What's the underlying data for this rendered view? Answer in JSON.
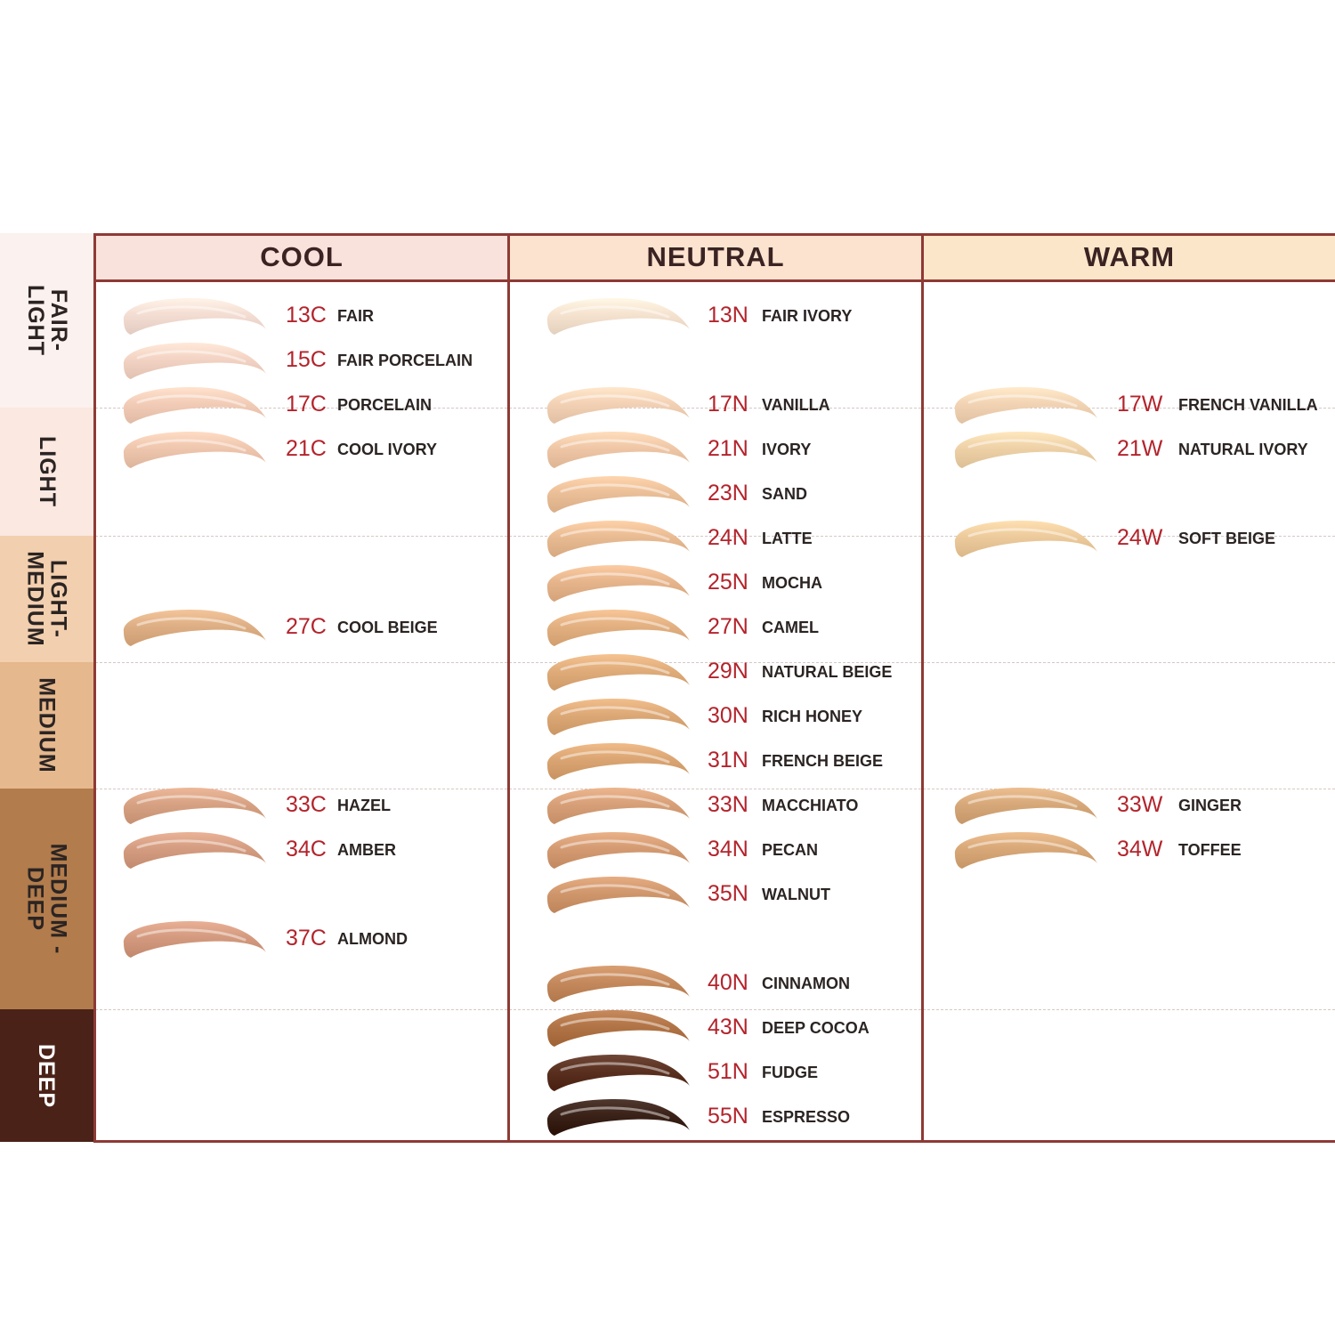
{
  "columns": [
    {
      "key": "cool",
      "label": "COOL",
      "header_color": "#f9e2db"
    },
    {
      "key": "neutral",
      "label": "NEUTRAL",
      "header_color": "#fbe3cf"
    },
    {
      "key": "warm",
      "label": "WARM",
      "header_color": "#fbe6ca"
    }
  ],
  "depth_bands": [
    {
      "label": "FAIR-\nLIGHT",
      "color": "#fbf1ee",
      "text_color": "#2b2423"
    },
    {
      "label": "LIGHT",
      "color": "#fae8e1",
      "text_color": "#2b2423"
    },
    {
      "label": "LIGHT-\nMEDIUM",
      "color": "#f2cfae",
      "text_color": "#2b2423"
    },
    {
      "label": "MEDIUM",
      "color": "#e5b88d",
      "text_color": "#2b2423"
    },
    {
      "label": "MEDIUM -\nDEEP",
      "color": "#b27c4c",
      "text_color": "#2b2423"
    },
    {
      "label": "DEEP",
      "color": "#4a2218",
      "text_color": "#ffffff"
    }
  ],
  "shades": [
    {
      "column": "cool",
      "row": 0,
      "code": "13C",
      "name": "FAIR",
      "color": "#f4ddd2"
    },
    {
      "column": "cool",
      "row": 1,
      "code": "15C",
      "name": "FAIR PORCELAIN",
      "color": "#f3d3c3"
    },
    {
      "column": "cool",
      "row": 2,
      "code": "17C",
      "name": "PORCELAIN",
      "color": "#f2ccb7"
    },
    {
      "column": "cool",
      "row": 3,
      "code": "21C",
      "name": "COOL IVORY",
      "color": "#efc6ae"
    },
    {
      "column": "cool",
      "row": 7,
      "code": "27C",
      "name": "COOL BEIGE",
      "color": "#deaf84"
    },
    {
      "column": "cool",
      "row": 11,
      "code": "33C",
      "name": "HAZEL",
      "color": "#d7a283"
    },
    {
      "column": "cool",
      "row": 12,
      "code": "34C",
      "name": "AMBER",
      "color": "#d49c80"
    },
    {
      "column": "cool",
      "row": 14,
      "code": "37C",
      "name": "ALMOND",
      "color": "#d39a7f"
    },
    {
      "column": "neutral",
      "row": 0,
      "code": "13N",
      "name": "FAIR IVORY",
      "color": "#f5e2cf"
    },
    {
      "column": "neutral",
      "row": 2,
      "code": "17N",
      "name": "VANILLA",
      "color": "#f3d1b5"
    },
    {
      "column": "neutral",
      "row": 3,
      "code": "21N",
      "name": "IVORY",
      "color": "#efc7a6"
    },
    {
      "column": "neutral",
      "row": 4,
      "code": "23N",
      "name": "SAND",
      "color": "#ebbf98"
    },
    {
      "column": "neutral",
      "row": 5,
      "code": "24N",
      "name": "LATTE",
      "color": "#e9bb92"
    },
    {
      "column": "neutral",
      "row": 6,
      "code": "25N",
      "name": "MOCHA",
      "color": "#e6b58c"
    },
    {
      "column": "neutral",
      "row": 7,
      "code": "27N",
      "name": "CAMEL",
      "color": "#e2b081"
    },
    {
      "column": "neutral",
      "row": 8,
      "code": "29N",
      "name": "NATURAL BEIGE",
      "color": "#dfac7a"
    },
    {
      "column": "neutral",
      "row": 9,
      "code": "30N",
      "name": "RICH HONEY",
      "color": "#dca876"
    },
    {
      "column": "neutral",
      "row": 10,
      "code": "31N",
      "name": "FRENCH BEIGE",
      "color": "#daa572"
    },
    {
      "column": "neutral",
      "row": 11,
      "code": "33N",
      "name": "MACCHIATO",
      "color": "#d7a078"
    },
    {
      "column": "neutral",
      "row": 12,
      "code": "34N",
      "name": "PECAN",
      "color": "#d49b72"
    },
    {
      "column": "neutral",
      "row": 13,
      "code": "35N",
      "name": "WALNUT",
      "color": "#d0966c"
    },
    {
      "column": "neutral",
      "row": 15,
      "code": "40N",
      "name": "CINNAMON",
      "color": "#c4895c"
    },
    {
      "column": "neutral",
      "row": 16,
      "code": "43N",
      "name": "DEEP COCOA",
      "color": "#b17446"
    },
    {
      "column": "neutral",
      "row": 17,
      "code": "51N",
      "name": "FUDGE",
      "color": "#5a3121"
    },
    {
      "column": "neutral",
      "row": 18,
      "code": "55N",
      "name": "ESPRESSO",
      "color": "#3a2219"
    },
    {
      "column": "warm",
      "row": 2,
      "code": "17W",
      "name": "FRENCH VANILLA",
      "color": "#f2d4b4"
    },
    {
      "column": "warm",
      "row": 3,
      "code": "21W",
      "name": "NATURAL IVORY",
      "color": "#eed1a7"
    },
    {
      "column": "warm",
      "row": 5,
      "code": "24W",
      "name": "SOFT BEIGE",
      "color": "#ecca9b"
    },
    {
      "column": "warm",
      "row": 11,
      "code": "33W",
      "name": "GINGER",
      "color": "#d7a97a"
    },
    {
      "column": "warm",
      "row": 12,
      "code": "34W",
      "name": "TOFFEE",
      "color": "#d8a878"
    }
  ]
}
